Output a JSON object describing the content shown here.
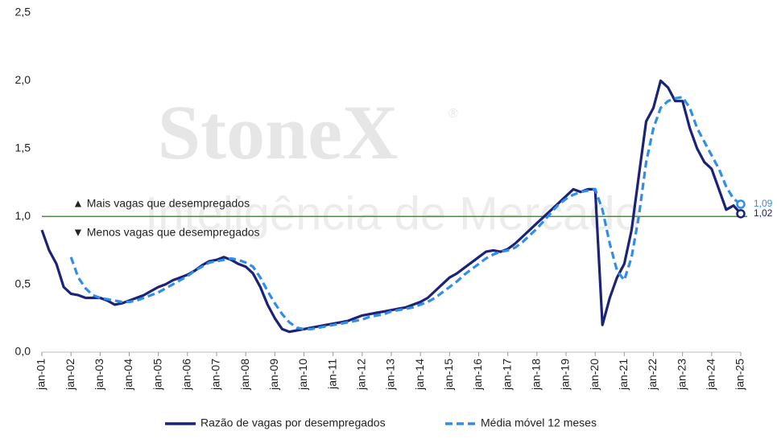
{
  "chart_data": {
    "type": "line",
    "watermark": {
      "brand": "StoneX",
      "mark": "®",
      "tagline": "Inteligência de Mercado"
    },
    "annotations": [
      "▲ Mais vagas que desempregados",
      "▼ Menos vagas que desempregados"
    ],
    "reference_line": {
      "value": 1.0,
      "color": "#3a9a2a"
    },
    "ylim": [
      0,
      2.5
    ],
    "yticks": [
      {
        "value": 0,
        "label": "0,0"
      },
      {
        "value": 0.5,
        "label": "0,5"
      },
      {
        "value": 1,
        "label": "1,0"
      },
      {
        "value": 1.5,
        "label": "1,5"
      },
      {
        "value": 2,
        "label": "2,0"
      },
      {
        "value": 2.5,
        "label": "2,5"
      }
    ],
    "grid": false,
    "legend": "bottom",
    "categories": [
      "jan-01",
      null,
      null,
      null,
      "jan-02",
      null,
      null,
      null,
      "jan-03",
      null,
      null,
      null,
      "jan-04",
      null,
      null,
      null,
      "jan-05",
      null,
      null,
      null,
      "jan-06",
      null,
      null,
      null,
      "jan-07",
      null,
      null,
      null,
      "jan-08",
      null,
      null,
      null,
      "jan-09",
      null,
      null,
      null,
      "jan-10",
      null,
      null,
      null,
      "jan-11",
      null,
      null,
      null,
      "jan-12",
      null,
      null,
      null,
      "jan-13",
      null,
      null,
      null,
      "jan-14",
      null,
      null,
      null,
      "jan-15",
      null,
      null,
      null,
      "jan-16",
      null,
      null,
      null,
      "jan-17",
      null,
      null,
      null,
      "jan-18",
      null,
      null,
      null,
      "jan-19",
      null,
      null,
      null,
      "jan-20",
      null,
      null,
      null,
      "jan-21",
      null,
      null,
      null,
      "jan-22",
      null,
      null,
      null,
      "jan-23",
      null,
      null,
      null,
      "jan-24",
      null,
      null,
      null,
      "jan-25"
    ],
    "series": [
      {
        "name": "Razão de vagas por desempregados",
        "color": "#1a2378",
        "dashed": false,
        "last_value_label": "1,02",
        "values": [
          0.9,
          0.75,
          0.65,
          0.48,
          0.43,
          0.42,
          0.4,
          0.4,
          0.4,
          0.38,
          0.35,
          0.36,
          0.38,
          0.4,
          0.42,
          0.45,
          0.48,
          0.5,
          0.53,
          0.55,
          0.57,
          0.6,
          0.64,
          0.67,
          0.68,
          0.7,
          0.68,
          0.65,
          0.63,
          0.58,
          0.48,
          0.35,
          0.25,
          0.17,
          0.15,
          0.16,
          0.17,
          0.18,
          0.19,
          0.2,
          0.21,
          0.22,
          0.23,
          0.25,
          0.27,
          0.28,
          0.29,
          0.3,
          0.31,
          0.32,
          0.33,
          0.35,
          0.37,
          0.4,
          0.45,
          0.5,
          0.55,
          0.58,
          0.62,
          0.66,
          0.7,
          0.74,
          0.75,
          0.74,
          0.76,
          0.8,
          0.85,
          0.9,
          0.95,
          1.0,
          1.05,
          1.1,
          1.15,
          1.2,
          1.18,
          1.2,
          1.2,
          0.2,
          0.4,
          0.55,
          0.65,
          0.9,
          1.3,
          1.7,
          1.8,
          2.0,
          1.95,
          1.85,
          1.85,
          1.65,
          1.5,
          1.4,
          1.35,
          1.2,
          1.05,
          1.08,
          1.02
        ]
      },
      {
        "name": "Média móvel 12 meses",
        "color": "#2f8ee8",
        "dashed": true,
        "last_value_label": "1,09",
        "values": [
          null,
          null,
          null,
          null,
          0.7,
          0.55,
          0.47,
          0.42,
          0.4,
          0.39,
          0.38,
          0.37,
          0.37,
          0.38,
          0.4,
          0.42,
          0.44,
          0.47,
          0.5,
          0.53,
          0.56,
          0.6,
          0.63,
          0.66,
          0.67,
          0.68,
          0.69,
          0.68,
          0.66,
          0.63,
          0.55,
          0.45,
          0.36,
          0.28,
          0.22,
          0.18,
          0.17,
          0.17,
          0.18,
          0.19,
          0.2,
          0.21,
          0.22,
          0.23,
          0.24,
          0.26,
          0.27,
          0.28,
          0.3,
          0.31,
          0.32,
          0.33,
          0.35,
          0.37,
          0.4,
          0.44,
          0.48,
          0.52,
          0.57,
          0.61,
          0.65,
          0.69,
          0.72,
          0.74,
          0.75,
          0.77,
          0.81,
          0.86,
          0.91,
          0.97,
          1.03,
          1.09,
          1.13,
          1.16,
          1.18,
          1.19,
          1.2,
          1.05,
          0.8,
          0.6,
          0.53,
          0.7,
          1.0,
          1.4,
          1.65,
          1.8,
          1.85,
          1.87,
          1.88,
          1.8,
          1.65,
          1.55,
          1.45,
          1.35,
          1.22,
          1.13,
          1.09
        ]
      }
    ]
  }
}
